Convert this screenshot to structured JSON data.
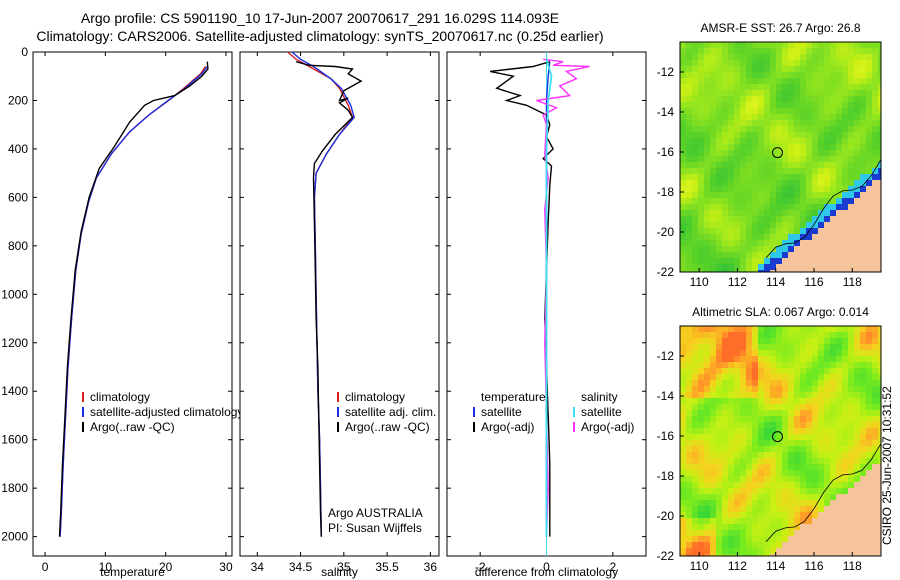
{
  "header": {
    "line1": "Argo profile: CS 5901190_10 17-Jun-2007 20070617_291 16.029S 114.093E",
    "line2": "Climatology: CARS2006. Satellite-adjusted climatology: synTS_20070617.nc (0.25d earlier)"
  },
  "side_stamp": "CSIRO 25-Jun-2007 10:31:52",
  "colors": {
    "climatology": "#d62020",
    "satellite": "#1a2ee0",
    "argo": "#000000",
    "salinity_sat": "#3ee0f0",
    "argo_adj_sal": "#ff30ff",
    "land": "#f5c49a"
  },
  "chart_data": [
    {
      "id": "temperature",
      "type": "line",
      "xlabel": "temperature",
      "ylabel": "",
      "xlim": [
        -2,
        31
      ],
      "ylim": [
        2080,
        0
      ],
      "xticks": [
        0,
        10,
        20,
        30
      ],
      "yticks": [
        0,
        200,
        400,
        600,
        800,
        1000,
        1200,
        1400,
        1600,
        1800,
        2000
      ],
      "legend": [
        "climatology",
        "satellite-adjusted climatology",
        "Argo(..raw -QC)"
      ],
      "series": [
        {
          "name": "climatology",
          "color": "climatology",
          "width": 1.4,
          "points": [
            [
              26.6,
              60
            ],
            [
              25.8,
              90
            ],
            [
              23.0,
              150
            ],
            [
              20.5,
              200
            ],
            [
              17.2,
              260
            ],
            [
              14.0,
              330
            ],
            [
              11.0,
              420
            ],
            [
              8.5,
              520
            ],
            [
              7.2,
              620
            ],
            [
              6.0,
              750
            ],
            [
              5.1,
              900
            ],
            [
              4.4,
              1100
            ],
            [
              3.8,
              1300
            ],
            [
              3.4,
              1500
            ],
            [
              3.0,
              1700
            ],
            [
              2.7,
              1900
            ],
            [
              2.5,
              2000
            ]
          ]
        },
        {
          "name": "satellite-adjusted climatology",
          "color": "satellite",
          "width": 1.4,
          "points": [
            [
              26.9,
              60
            ],
            [
              26.0,
              90
            ],
            [
              23.2,
              150
            ],
            [
              20.4,
              200
            ],
            [
              17.2,
              260
            ],
            [
              14.0,
              330
            ],
            [
              11.0,
              420
            ],
            [
              8.5,
              520
            ],
            [
              7.2,
              620
            ],
            [
              6.0,
              750
            ],
            [
              5.1,
              900
            ],
            [
              4.4,
              1100
            ],
            [
              3.8,
              1300
            ],
            [
              3.4,
              1500
            ],
            [
              3.0,
              1700
            ],
            [
              2.7,
              1900
            ],
            [
              2.5,
              2000
            ]
          ]
        },
        {
          "name": "Argo(..raw -QC)",
          "color": "argo",
          "width": 1.4,
          "points": [
            [
              26.9,
              40
            ],
            [
              27.0,
              70
            ],
            [
              26.0,
              100
            ],
            [
              24.0,
              140
            ],
            [
              21.5,
              180
            ],
            [
              18.0,
              200
            ],
            [
              16.5,
              220
            ],
            [
              14.0,
              290
            ],
            [
              11.5,
              390
            ],
            [
              9.0,
              480
            ],
            [
              7.3,
              600
            ],
            [
              6.0,
              740
            ],
            [
              5.0,
              900
            ],
            [
              4.3,
              1100
            ],
            [
              3.7,
              1300
            ],
            [
              3.3,
              1500
            ],
            [
              2.9,
              1700
            ],
            [
              2.6,
              1900
            ],
            [
              2.4,
              2000
            ]
          ]
        }
      ]
    },
    {
      "id": "salinity",
      "type": "line",
      "xlabel": "salinity",
      "ylabel": "",
      "xlim": [
        33.8,
        36.1
      ],
      "ylim": [
        2080,
        0
      ],
      "xticks": [
        34,
        34.5,
        35,
        35.5,
        36
      ],
      "legend": [
        "climatology",
        "satellite adj. clim.",
        "Argo(..raw -QC)"
      ],
      "annotation": [
        "Argo AUSTRALIA",
        "PI: Susan Wijffels"
      ],
      "series": [
        {
          "name": "climatology",
          "color": "climatology",
          "width": 1.4,
          "points": [
            [
              34.35,
              0
            ],
            [
              34.45,
              30
            ],
            [
              34.6,
              60
            ],
            [
              34.85,
              110
            ],
            [
              34.95,
              150
            ],
            [
              35.05,
              220
            ],
            [
              35.1,
              270
            ],
            [
              34.95,
              340
            ],
            [
              34.8,
              420
            ],
            [
              34.68,
              500
            ],
            [
              34.66,
              600
            ],
            [
              34.67,
              800
            ],
            [
              34.68,
              1000
            ],
            [
              34.69,
              1200
            ],
            [
              34.7,
              1400
            ],
            [
              34.72,
              1600
            ],
            [
              34.73,
              1800
            ],
            [
              34.74,
              2000
            ]
          ]
        },
        {
          "name": "satellite adj. clim.",
          "color": "satellite",
          "width": 1.4,
          "points": [
            [
              34.4,
              0
            ],
            [
              34.5,
              30
            ],
            [
              34.65,
              60
            ],
            [
              34.85,
              110
            ],
            [
              34.97,
              150
            ],
            [
              35.08,
              220
            ],
            [
              35.12,
              270
            ],
            [
              34.95,
              340
            ],
            [
              34.8,
              420
            ],
            [
              34.68,
              500
            ],
            [
              34.66,
              600
            ],
            [
              34.67,
              800
            ],
            [
              34.68,
              1000
            ],
            [
              34.69,
              1200
            ],
            [
              34.7,
              1400
            ],
            [
              34.72,
              1600
            ],
            [
              34.73,
              1800
            ],
            [
              34.74,
              2000
            ]
          ]
        },
        {
          "name": "Argo(..raw -QC)",
          "color": "argo",
          "width": 1.4,
          "points": [
            [
              34.45,
              40
            ],
            [
              34.6,
              55
            ],
            [
              34.9,
              60
            ],
            [
              35.1,
              70
            ],
            [
              35.05,
              90
            ],
            [
              35.2,
              120
            ],
            [
              35.0,
              160
            ],
            [
              34.95,
              200
            ],
            [
              35.05,
              190
            ],
            [
              34.95,
              210
            ],
            [
              35.05,
              240
            ],
            [
              35.1,
              270
            ],
            [
              34.9,
              340
            ],
            [
              34.75,
              410
            ],
            [
              34.66,
              460
            ],
            [
              34.65,
              520
            ],
            [
              34.66,
              700
            ],
            [
              34.67,
              900
            ],
            [
              34.68,
              1100
            ],
            [
              34.7,
              1300
            ],
            [
              34.71,
              1500
            ],
            [
              34.72,
              1700
            ],
            [
              34.73,
              1900
            ],
            [
              34.74,
              2000
            ]
          ]
        }
      ]
    },
    {
      "id": "difference",
      "type": "line",
      "xlabel": "difference from climatology",
      "ylabel": "",
      "xlim": [
        -3,
        3
      ],
      "ylim": [
        2080,
        0
      ],
      "xticks": [
        -2,
        0,
        2
      ],
      "legend_left": [
        "temperature",
        "satellite",
        "Argo(-adj)"
      ],
      "legend_right": [
        "salinity",
        "satellite",
        "Argo(-adj)"
      ],
      "series": [
        {
          "name": "temperature satellite",
          "color": "satellite",
          "width": 1.4,
          "points": [
            [
              0.1,
              40
            ],
            [
              0.05,
              100
            ],
            [
              0.0,
              200
            ],
            [
              0.0,
              400
            ],
            [
              0.0,
              1000
            ],
            [
              0.0,
              2000
            ]
          ]
        },
        {
          "name": "temperature Argo(-adj)",
          "color": "argo",
          "width": 1.4,
          "points": [
            [
              0.1,
              40
            ],
            [
              -0.4,
              60
            ],
            [
              -1.7,
              80
            ],
            [
              -1.0,
              100
            ],
            [
              -1.5,
              150
            ],
            [
              -0.8,
              180
            ],
            [
              -1.2,
              200
            ],
            [
              -0.6,
              220
            ],
            [
              0.0,
              260
            ],
            [
              0.1,
              300
            ],
            [
              0.0,
              350
            ],
            [
              0.2,
              400
            ],
            [
              -0.1,
              440
            ],
            [
              0.15,
              470
            ],
            [
              0.1,
              550
            ],
            [
              0.05,
              700
            ],
            [
              0.0,
              900
            ],
            [
              -0.05,
              1100
            ],
            [
              0.0,
              1300
            ],
            [
              0.05,
              1500
            ],
            [
              0.1,
              1700
            ],
            [
              0.1,
              1900
            ],
            [
              0.1,
              2000
            ]
          ]
        },
        {
          "name": "salinity Argo(-adj)",
          "color": "argo_adj_sal",
          "width": 1.4,
          "points": [
            [
              -0.1,
              30
            ],
            [
              0.5,
              40
            ],
            [
              0.2,
              55
            ],
            [
              1.3,
              60
            ],
            [
              0.6,
              80
            ],
            [
              0.9,
              110
            ],
            [
              0.4,
              140
            ],
            [
              0.7,
              180
            ],
            [
              -0.3,
              200
            ],
            [
              0.3,
              230
            ],
            [
              -0.1,
              260
            ],
            [
              0.0,
              300
            ],
            [
              -0.05,
              420
            ],
            [
              0.05,
              520
            ],
            [
              -0.05,
              650
            ],
            [
              0.0,
              900
            ],
            [
              -0.05,
              1200
            ],
            [
              0.0,
              1500
            ],
            [
              0.05,
              1800
            ],
            [
              0.0,
              2000
            ]
          ]
        },
        {
          "name": "salinity satellite",
          "color": "salinity_sat",
          "width": 1.8,
          "points": [
            [
              0.0,
              30
            ],
            [
              0.15,
              100
            ],
            [
              0.05,
              200
            ],
            [
              0.0,
              400
            ],
            [
              0.0,
              2000
            ]
          ]
        }
      ]
    },
    {
      "id": "sst_map",
      "type": "heatmap",
      "title": "AMSR-E SST: 26.7 Argo: 26.8",
      "xlim": [
        109,
        119.5
      ],
      "ylim": [
        -22,
        -10.5
      ],
      "xticks": [
        110,
        112,
        114,
        116,
        118
      ],
      "yticks": [
        -12,
        -14,
        -16,
        -18,
        -20,
        -22
      ],
      "marker": [
        114.093,
        -16.029
      ]
    },
    {
      "id": "sla_map",
      "type": "heatmap",
      "title": "Altimetric SLA: 0.067 Argo: 0.014",
      "xlim": [
        109,
        119.5
      ],
      "ylim": [
        -22,
        -10.5
      ],
      "xticks": [
        110,
        112,
        114,
        116,
        118
      ],
      "yticks": [
        -12,
        -14,
        -16,
        -18,
        -20,
        -22
      ],
      "marker": [
        114.093,
        -16.029
      ]
    }
  ]
}
